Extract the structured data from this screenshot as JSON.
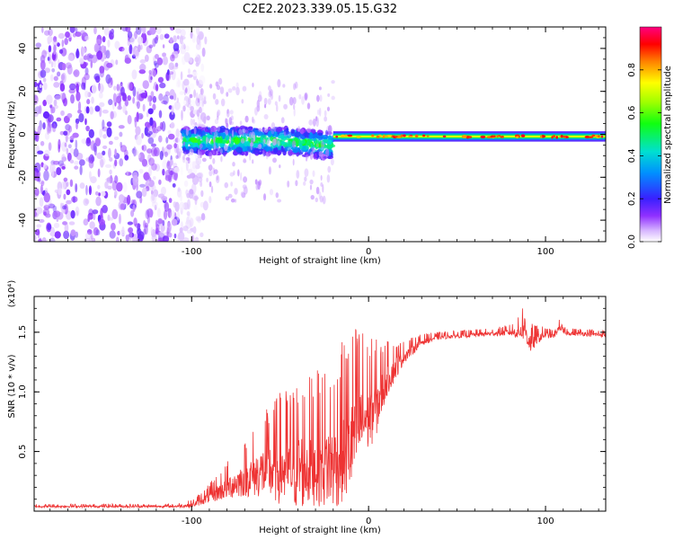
{
  "title": "C2E2.2023.339.05.15.G32",
  "colors": {
    "line": "#ee3333",
    "frame": "#000000"
  },
  "chart_data": [
    {
      "type": "heatmap",
      "xlabel": "Height of straight line (km)",
      "ylabel": "Frequency (Hz)",
      "xlim": [
        -189,
        134
      ],
      "ylim": [
        -50,
        50
      ],
      "x_ticks": [
        -100,
        0,
        100
      ],
      "x_tick_labels": [
        "-100",
        "0",
        "100"
      ],
      "y_ticks": [
        -40,
        -20,
        0,
        20,
        40
      ],
      "y_tick_labels": [
        "-40",
        "-20",
        "0",
        "20",
        "40"
      ],
      "colorbar": {
        "label": "Normalized spectral amplitude",
        "range": [
          0,
          1
        ],
        "ticks": [
          0,
          0.2,
          0.4,
          0.6,
          0.8
        ],
        "tick_labels": [
          "0.0",
          "0.2",
          "0.4",
          "0.6",
          "0.8"
        ]
      },
      "regions": [
        {
          "name": "noise",
          "x_range": [
            -189,
            -100
          ],
          "freq_range": [
            -50,
            50
          ],
          "amplitude": 0.08
        },
        {
          "name": "turbulent-signal",
          "x_range": [
            -105,
            -20
          ],
          "freq_center": -3,
          "freq_halfwidth": 6,
          "amplitude": 0.3
        },
        {
          "name": "stable-signal",
          "x_range": [
            -20,
            134
          ],
          "freq_center": -1,
          "freq_halfwidth": 2,
          "amplitude": 0.55
        }
      ]
    },
    {
      "type": "line",
      "xlabel": "Height of straight line (km)",
      "ylabel": "SNR (10 * v/v)",
      "y_multiplier": "(x10⁴)",
      "xlim": [
        -189,
        134
      ],
      "ylim": [
        0,
        1.8
      ],
      "x_ticks": [
        -100,
        0,
        100
      ],
      "x_tick_labels": [
        "-100",
        "0",
        "100"
      ],
      "y_ticks": [
        0.5,
        1.0,
        1.5
      ],
      "y_tick_labels": [
        "0.5",
        "1.0",
        "1.5"
      ],
      "series": [
        {
          "name": "SNR",
          "x": [
            -189,
            -150,
            -110,
            -100,
            -90,
            -80,
            -70,
            -60,
            -50,
            -40,
            -30,
            -20,
            -10,
            -5,
            0,
            5,
            10,
            20,
            30,
            40,
            50,
            60,
            70,
            80,
            85,
            88,
            90,
            92,
            95,
            100,
            105,
            108,
            110,
            115,
            120,
            130,
            134
          ],
          "y": [
            0.04,
            0.04,
            0.04,
            0.05,
            0.12,
            0.2,
            0.27,
            0.33,
            0.35,
            0.35,
            0.4,
            0.4,
            0.57,
            0.75,
            0.8,
            0.9,
            1.1,
            1.3,
            1.42,
            1.46,
            1.47,
            1.48,
            1.49,
            1.5,
            1.5,
            1.55,
            1.45,
            1.4,
            1.45,
            1.48,
            1.47,
            1.55,
            1.5,
            1.49,
            1.49,
            1.48,
            1.48
          ],
          "noise_amp": [
            0.01,
            0.01,
            0.01,
            0.02,
            0.05,
            0.1,
            0.15,
            0.22,
            0.3,
            0.35,
            0.35,
            0.4,
            0.45,
            0.4,
            0.3,
            0.25,
            0.15,
            0.06,
            0.03,
            0.02,
            0.02,
            0.02,
            0.02,
            0.03,
            0.06,
            0.12,
            0.1,
            0.08,
            0.05,
            0.03,
            0.02,
            0.03,
            0.02,
            0.02,
            0.02,
            0.02,
            0.02
          ]
        }
      ]
    }
  ]
}
